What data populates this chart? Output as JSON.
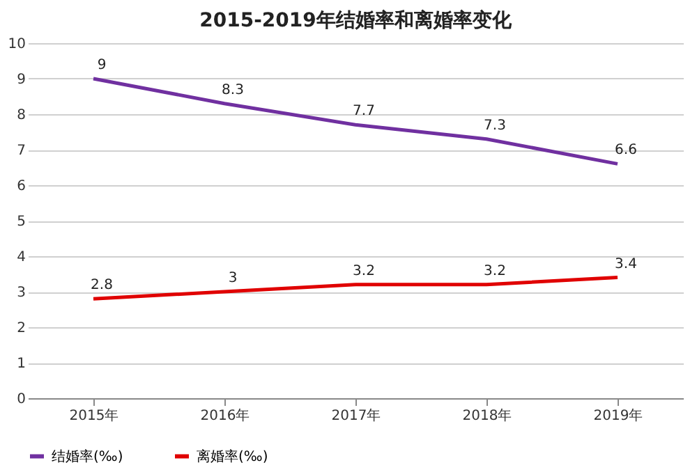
{
  "chart_data": {
    "type": "line",
    "title": "2015-2019年结婚率和离婚率变化",
    "categories": [
      "2015年",
      "2016年",
      "2017年",
      "2018年",
      "2019年"
    ],
    "series": [
      {
        "name": "结婚率(‰)",
        "color": "#7030a0",
        "values": [
          9,
          8.3,
          7.7,
          7.3,
          6.6
        ]
      },
      {
        "name": "离婚率(‰)",
        "color": "#e00000",
        "values": [
          2.8,
          3,
          3.2,
          3.2,
          3.4
        ]
      }
    ],
    "ylim": [
      0,
      10
    ],
    "yticks": [
      0,
      1,
      2,
      3,
      4,
      5,
      6,
      7,
      8,
      9,
      10
    ],
    "grid": "y",
    "legend": "bottom",
    "data_labels": true,
    "marker": "none",
    "line_style": "solid"
  }
}
